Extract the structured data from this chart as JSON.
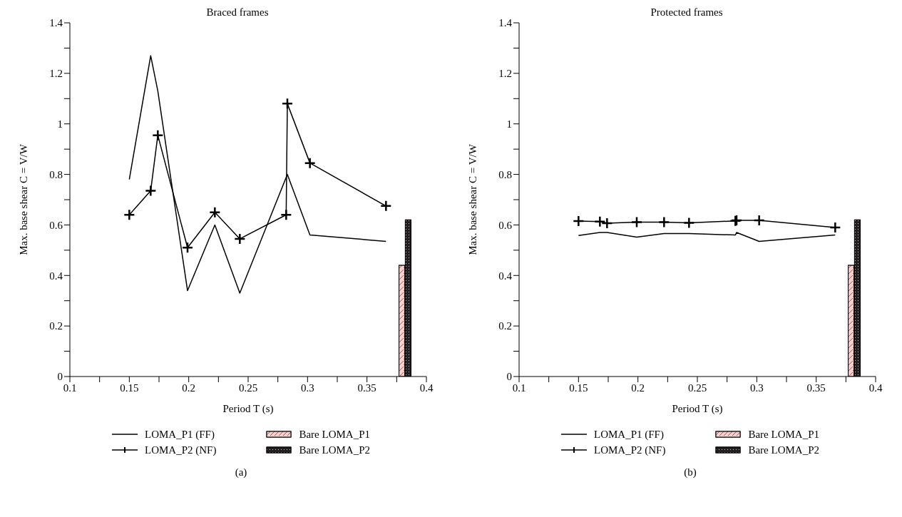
{
  "chart_data": [
    {
      "type": "line",
      "title": "Braced frames",
      "xlabel": "Period T (s)",
      "ylabel": "Max. base shear C = V/W",
      "legend": "bottom",
      "grid": false,
      "annotations": [
        "(a)"
      ],
      "xlim": [
        0.1,
        0.4
      ],
      "xticks": [
        0.1,
        {
          "value": 0.125,
          "label": null
        },
        0.15,
        {
          "value": 0.175,
          "label": null
        },
        0.2,
        {
          "value": 0.225,
          "label": null
        },
        0.25,
        {
          "value": 0.275,
          "label": null
        },
        0.3,
        {
          "value": 0.325,
          "label": null
        },
        0.35,
        {
          "value": 0.375,
          "label": null
        },
        0.4
      ],
      "ylim": [
        0,
        1.4
      ],
      "yticks": [
        0,
        {
          "value": 0.1,
          "label": null
        },
        0.2,
        {
          "value": 0.3,
          "label": null
        },
        0.4,
        {
          "value": 0.5,
          "label": null
        },
        0.6,
        {
          "value": 0.7,
          "label": null
        },
        0.8,
        {
          "value": 0.9,
          "label": null
        },
        1,
        {
          "value": 1.1,
          "label": null
        },
        1.2,
        {
          "value": 1.3,
          "label": null
        },
        1.4
      ],
      "series": [
        {
          "name": "LOMA_P1 (FF)",
          "type": "line",
          "color": "#000000",
          "marker": "none",
          "x": [
            0.15,
            0.168,
            0.174,
            0.199,
            0.222,
            0.243,
            0.283,
            0.302,
            0.366
          ],
          "values": [
            0.78,
            1.27,
            1.13,
            0.34,
            0.6,
            0.33,
            0.8,
            0.56,
            0.535
          ]
        },
        {
          "name": "LOMA_P2 (NF)",
          "type": "line",
          "color": "#000000",
          "marker": "cross",
          "x": [
            0.15,
            0.168,
            0.174,
            0.199,
            0.222,
            0.243,
            0.282,
            0.283,
            0.302,
            0.366
          ],
          "values": [
            0.64,
            0.735,
            0.955,
            0.51,
            0.65,
            0.545,
            0.64,
            1.08,
            0.845,
            0.675
          ]
        },
        {
          "name": "Bare LOMA_P1",
          "type": "bar",
          "color": "#e8413c",
          "x": [
            0.382
          ],
          "values": [
            0.44
          ]
        },
        {
          "name": "Bare LOMA_P2",
          "type": "bar",
          "color": "#231f20",
          "x": [
            0.382
          ],
          "values": [
            0.62
          ]
        }
      ]
    },
    {
      "type": "line",
      "title": "Protected frames",
      "xlabel": "Period T (s)",
      "ylabel": "Max. base shear C = V/W",
      "legend": "bottom",
      "grid": false,
      "annotations": [
        "(b)"
      ],
      "xlim": [
        0.1,
        0.4
      ],
      "xticks": [
        0.1,
        {
          "value": 0.125,
          "label": null
        },
        0.15,
        {
          "value": 0.175,
          "label": null
        },
        0.2,
        {
          "value": 0.225,
          "label": null
        },
        0.25,
        {
          "value": 0.275,
          "label": null
        },
        0.3,
        {
          "value": 0.325,
          "label": null
        },
        0.35,
        {
          "value": 0.375,
          "label": null
        },
        0.4
      ],
      "ylim": [
        0,
        1.4
      ],
      "yticks": [
        0,
        {
          "value": 0.1,
          "label": null
        },
        0.2,
        {
          "value": 0.3,
          "label": null
        },
        0.4,
        {
          "value": 0.5,
          "label": null
        },
        0.6,
        {
          "value": 0.7,
          "label": null
        },
        0.8,
        {
          "value": 0.9,
          "label": null
        },
        1,
        {
          "value": 1.1,
          "label": null
        },
        1.2,
        {
          "value": 1.3,
          "label": null
        },
        1.4
      ],
      "series": [
        {
          "name": "LOMA_P1 (FF)",
          "type": "line",
          "color": "#000000",
          "marker": "none",
          "x": [
            0.15,
            0.168,
            0.174,
            0.199,
            0.222,
            0.243,
            0.282,
            0.283,
            0.302,
            0.366
          ],
          "values": [
            0.558,
            0.57,
            0.57,
            0.552,
            0.566,
            0.566,
            0.56,
            0.57,
            0.535,
            0.56
          ]
        },
        {
          "name": "LOMA_P2 (NF)",
          "type": "line",
          "color": "#000000",
          "marker": "cross",
          "x": [
            0.15,
            0.168,
            0.174,
            0.199,
            0.222,
            0.243,
            0.282,
            0.283,
            0.302,
            0.366
          ],
          "values": [
            0.615,
            0.613,
            0.607,
            0.611,
            0.611,
            0.608,
            0.616,
            0.618,
            0.618,
            0.59
          ]
        },
        {
          "name": "Bare LOMA_P1",
          "type": "bar",
          "color": "#e8413c",
          "x": [
            0.382
          ],
          "values": [
            0.44
          ]
        },
        {
          "name": "Bare LOMA_P2",
          "type": "bar",
          "color": "#231f20",
          "x": [
            0.382
          ],
          "values": [
            0.62
          ]
        }
      ]
    }
  ]
}
